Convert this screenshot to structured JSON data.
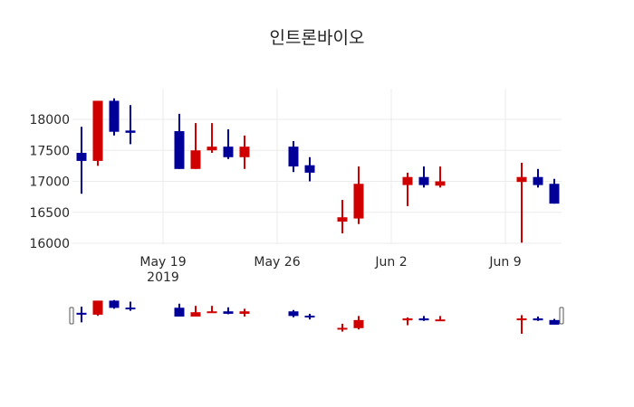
{
  "chart_data": {
    "type": "candlestick",
    "title": "인트론바이오",
    "xlabel": "",
    "ylabel": "",
    "ylim": [
      15950,
      18450
    ],
    "yticks": [
      16000,
      16500,
      17000,
      17500,
      18000
    ],
    "xticks": [
      {
        "date": "2019-05-19",
        "label": "May 19",
        "sublabel": "2019"
      },
      {
        "date": "2019-05-26",
        "label": "May 26"
      },
      {
        "date": "2019-06-02",
        "label": "Jun 2"
      },
      {
        "date": "2019-06-09",
        "label": "Jun 9"
      }
    ],
    "grid": true,
    "rangeslider": true,
    "increasing_color": "#d00000",
    "decreasing_color": "#000099",
    "candles": [
      {
        "date": "2019-05-14",
        "open": 17460,
        "high": 17880,
        "low": 16800,
        "close": 17330
      },
      {
        "date": "2019-05-15",
        "open": 17330,
        "high": 18300,
        "low": 17250,
        "close": 18300
      },
      {
        "date": "2019-05-16",
        "open": 18300,
        "high": 18340,
        "low": 17740,
        "close": 17800
      },
      {
        "date": "2019-05-17",
        "open": 17820,
        "high": 18230,
        "low": 17600,
        "close": 17800
      },
      {
        "date": "2019-05-20",
        "open": 17810,
        "high": 18090,
        "low": 17200,
        "close": 17200
      },
      {
        "date": "2019-05-21",
        "open": 17200,
        "high": 17940,
        "low": 17200,
        "close": 17500
      },
      {
        "date": "2019-05-22",
        "open": 17500,
        "high": 17940,
        "low": 17460,
        "close": 17560
      },
      {
        "date": "2019-05-23",
        "open": 17560,
        "high": 17840,
        "low": 17360,
        "close": 17390
      },
      {
        "date": "2019-05-24",
        "open": 17390,
        "high": 17740,
        "low": 17200,
        "close": 17560
      },
      {
        "date": "2019-05-27",
        "open": 17560,
        "high": 17650,
        "low": 17150,
        "close": 17240
      },
      {
        "date": "2019-05-28",
        "open": 17260,
        "high": 17390,
        "low": 17000,
        "close": 17140
      },
      {
        "date": "2019-05-30",
        "open": 16350,
        "high": 16700,
        "low": 16160,
        "close": 16420
      },
      {
        "date": "2019-05-31",
        "open": 16400,
        "high": 17240,
        "low": 16310,
        "close": 16960
      },
      {
        "date": "2019-06-03",
        "open": 16940,
        "high": 17140,
        "low": 16600,
        "close": 17070
      },
      {
        "date": "2019-06-04",
        "open": 17070,
        "high": 17240,
        "low": 16900,
        "close": 16940
      },
      {
        "date": "2019-06-05",
        "open": 16930,
        "high": 17240,
        "low": 16900,
        "close": 17000
      },
      {
        "date": "2019-06-10",
        "open": 16990,
        "high": 17300,
        "low": 16010,
        "close": 17070
      },
      {
        "date": "2019-06-11",
        "open": 17070,
        "high": 17200,
        "low": 16900,
        "close": 16940
      },
      {
        "date": "2019-06-12",
        "open": 16960,
        "high": 17040,
        "low": 16640,
        "close": 16640
      }
    ]
  }
}
